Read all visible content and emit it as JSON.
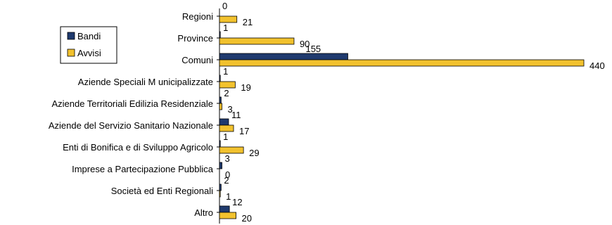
{
  "chart_data": {
    "type": "bar",
    "orientation": "horizontal",
    "title": "",
    "categories": [
      "Regioni",
      "Province",
      "Comuni",
      "Aziende Speciali M unicipalizzate",
      "Aziende Territoriali Edilizia Residenziale",
      "Aziende del Servizio Sanitario Nazionale",
      "Enti di Bonifica e di Sviluppo Agricolo",
      "Imprese a Partecipazione Pubblica",
      "Società ed Enti Regionali",
      "Altro"
    ],
    "series": [
      {
        "name": "Bandi",
        "color": "#1f3a6e",
        "values": [
          0,
          1,
          155,
          1,
          2,
          11,
          1,
          3,
          2,
          12
        ]
      },
      {
        "name": "Avvisi",
        "color": "#f2c22e",
        "values": [
          21,
          90,
          440,
          19,
          3,
          17,
          29,
          0,
          1,
          20
        ]
      }
    ],
    "xlim": [
      0,
      440
    ],
    "grid": false,
    "legend": {
      "position": "left",
      "items": [
        "Bandi",
        "Avvisi"
      ]
    },
    "data_labels": true
  }
}
